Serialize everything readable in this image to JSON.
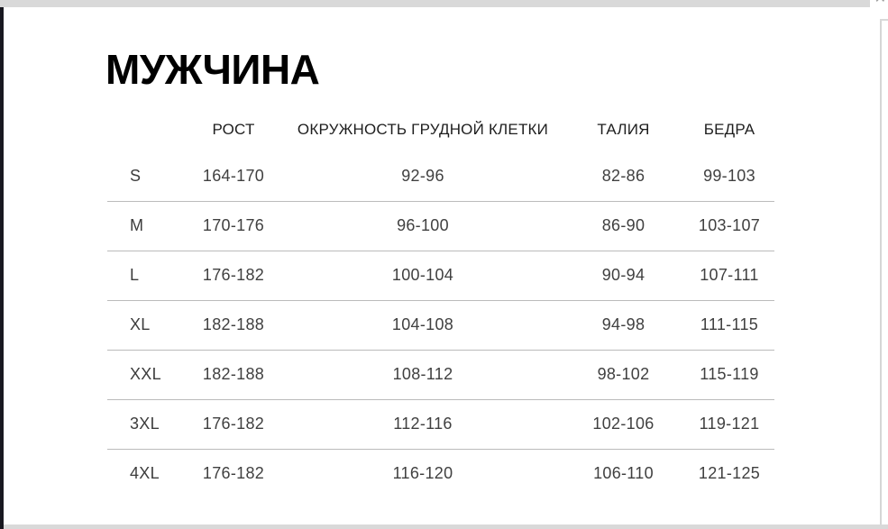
{
  "frame": {
    "close_glyph": "✕"
  },
  "header": {
    "title": "МУЖЧИНА"
  },
  "table": {
    "columns": [
      {
        "key": "size",
        "label": ""
      },
      {
        "key": "height",
        "label": "РОСТ"
      },
      {
        "key": "chest",
        "label": "ОКРУЖНОСТЬ ГРУДНОЙ КЛЕТКИ"
      },
      {
        "key": "waist",
        "label": "ТАЛИЯ"
      },
      {
        "key": "hips",
        "label": "БЕДРА"
      }
    ],
    "rows": [
      {
        "size": "S",
        "height": "164-170",
        "chest": "92-96",
        "waist": "82-86",
        "hips": "99-103"
      },
      {
        "size": "M",
        "height": "170-176",
        "chest": "96-100",
        "waist": "86-90",
        "hips": "103-107"
      },
      {
        "size": "L",
        "height": "176-182",
        "chest": "100-104",
        "waist": "90-94",
        "hips": "107-111"
      },
      {
        "size": "XL",
        "height": "182-188",
        "chest": "104-108",
        "waist": "94-98",
        "hips": "111-115"
      },
      {
        "size": "XXL",
        "height": "182-188",
        "chest": "108-112",
        "waist": "98-102",
        "hips": "115-119"
      },
      {
        "size": "3XL",
        "height": "176-182",
        "chest": "112-116",
        "waist": "102-106",
        "hips": "119-121"
      },
      {
        "size": "4XL",
        "height": "176-182",
        "chest": "116-120",
        "waist": "106-110",
        "hips": "121-125"
      }
    ]
  },
  "colors": {
    "page_edge_gray": "#d9d9d9",
    "left_bar_dark": "#181820",
    "divider_gray": "#bbbbbb",
    "title_black": "#000000",
    "cell_text": "#404040"
  }
}
